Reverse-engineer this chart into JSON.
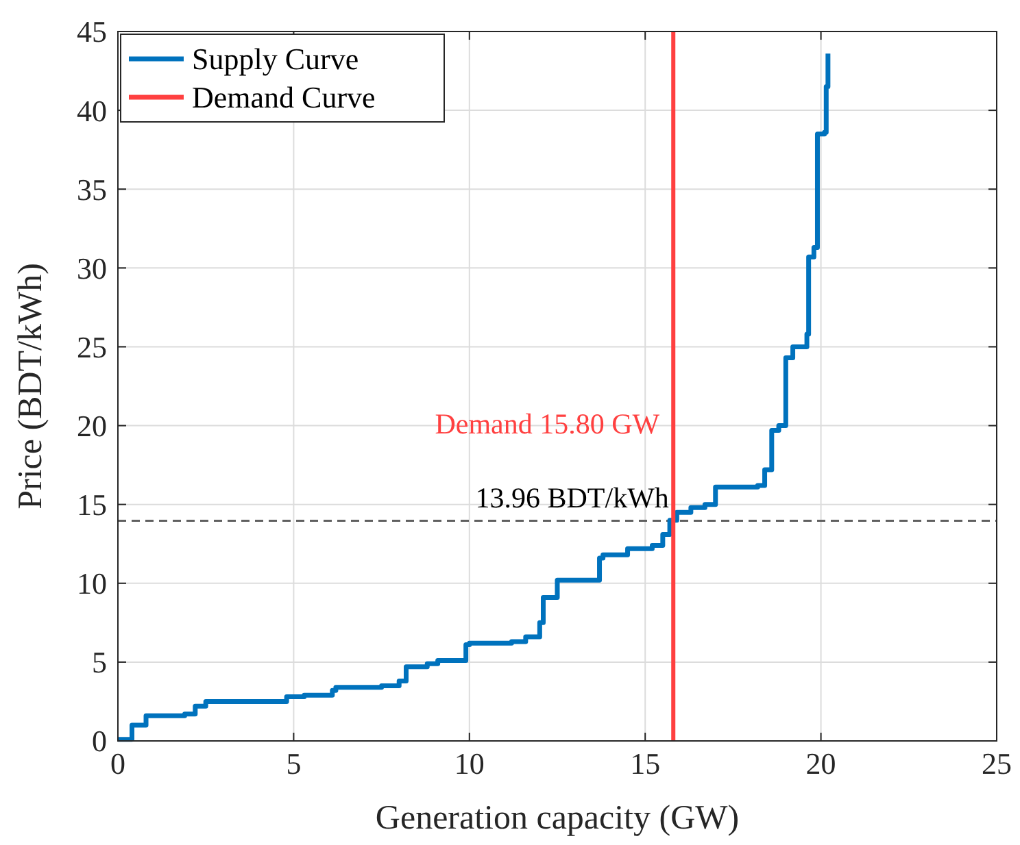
{
  "chart_data": {
    "type": "step",
    "xlabel": "Generation capacity (GW)",
    "ylabel": "Price (BDT/kWh)",
    "xlim": [
      0,
      25
    ],
    "xticks": [
      0,
      5,
      10,
      15,
      20,
      25
    ],
    "ylim": [
      0,
      45
    ],
    "yticks": [
      0,
      5,
      10,
      15,
      20,
      25,
      30,
      35,
      40,
      45
    ],
    "grid": true,
    "legend": "top left",
    "line_style": "solid",
    "series": [
      {
        "name": "Supply Curve",
        "color": "#0072bd",
        "x": [
          0,
          0.4,
          0.8,
          1.9,
          2.2,
          2.5,
          4.8,
          5.3,
          6.1,
          6.2,
          7.5,
          8.0,
          8.2,
          8.8,
          9.1,
          9.9,
          10.0,
          11.2,
          11.6,
          12.0,
          12.1,
          12.5,
          13.7,
          13.8,
          14.5,
          15.2,
          15.5,
          15.7,
          15.9,
          16.3,
          16.7,
          17.0,
          18.2,
          18.4,
          18.6,
          18.8,
          19.0,
          19.2,
          19.6,
          19.65,
          19.8,
          19.9,
          20.1,
          20.15,
          20.2
        ],
        "values": [
          0.1,
          1.0,
          1.6,
          1.7,
          2.2,
          2.5,
          2.8,
          2.9,
          3.2,
          3.4,
          3.5,
          3.8,
          4.7,
          4.9,
          5.1,
          6.1,
          6.2,
          6.3,
          6.6,
          7.5,
          9.1,
          10.2,
          11.6,
          11.8,
          12.2,
          12.4,
          13.1,
          14.0,
          14.5,
          14.8,
          15.0,
          16.1,
          16.2,
          17.2,
          19.7,
          20.0,
          24.3,
          25.0,
          25.8,
          30.7,
          31.3,
          38.5,
          38.6,
          41.5,
          43.6
        ]
      },
      {
        "name": "Demand Curve",
        "type": "line",
        "color": "#ff4040",
        "x": [
          15.8,
          15.8
        ],
        "values": [
          0,
          45
        ]
      }
    ],
    "ref_lines": [
      {
        "axis": "y",
        "value": 13.96,
        "label": "13.96 BDT/kWh",
        "color": "#606060",
        "line_style": "dashed"
      }
    ],
    "annotations": [
      {
        "text": "Demand 15.80 GW",
        "x": 15.8,
        "y": 19.5
      }
    ]
  }
}
